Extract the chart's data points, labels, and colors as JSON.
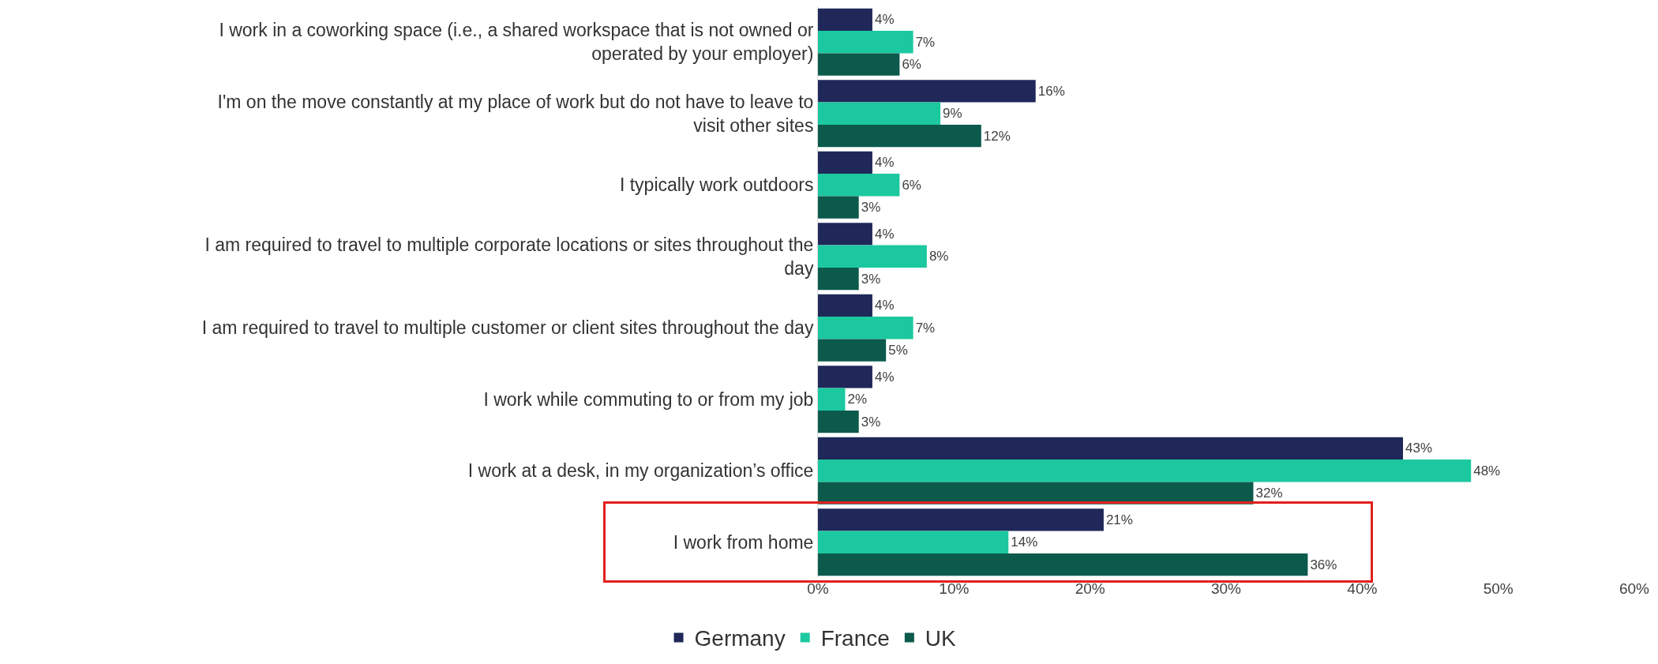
{
  "chart_data": {
    "type": "bar",
    "orientation": "horizontal",
    "categories": [
      "I work in a coworking space (i.e., a shared workspace that is not owned or operated by your employer)",
      "I'm on the move constantly at my place of work but do not have to leave to visit other sites",
      "I typically work outdoors",
      "I am required to travel to multiple corporate locations or sites throughout the day",
      "I am required to travel to multiple customer or client sites throughout the day",
      "I work while commuting to or from my job",
      "I work at a desk, in my organization’s office",
      "I work from home"
    ],
    "series": [
      {
        "name": "Germany",
        "color": "#1f2858",
        "values": [
          4,
          16,
          4,
          4,
          4,
          4,
          43,
          21
        ],
        "value_labels": [
          "4%",
          "16%",
          "4%",
          "4%",
          "4%",
          "4%",
          "43%",
          "21%"
        ]
      },
      {
        "name": "France",
        "color": "#1cc8a0",
        "values": [
          7,
          9,
          6,
          8,
          7,
          2,
          48,
          14
        ],
        "value_labels": [
          "7%",
          "9%",
          "6%",
          "8%",
          "7%",
          "2%",
          "48%",
          "14%"
        ]
      },
      {
        "name": "UK",
        "color": "#0b5a4c",
        "values": [
          6,
          12,
          3,
          3,
          5,
          3,
          32,
          36
        ],
        "value_labels": [
          "6%",
          "12%",
          "3%",
          "3%",
          "5%",
          "3%",
          "32%",
          "36%"
        ]
      }
    ],
    "xlim": [
      0,
      60
    ],
    "xticks": [
      {
        "value": 0,
        "label": "0%"
      },
      {
        "value": 10,
        "label": "10%"
      },
      {
        "value": 20,
        "label": "20%"
      },
      {
        "value": 30,
        "label": "30%"
      },
      {
        "value": 40,
        "label": "40%"
      },
      {
        "value": 50,
        "label": "50%"
      },
      {
        "value": 60,
        "label": "60%"
      }
    ],
    "data_labels": true,
    "legend": "bottom"
  }
}
